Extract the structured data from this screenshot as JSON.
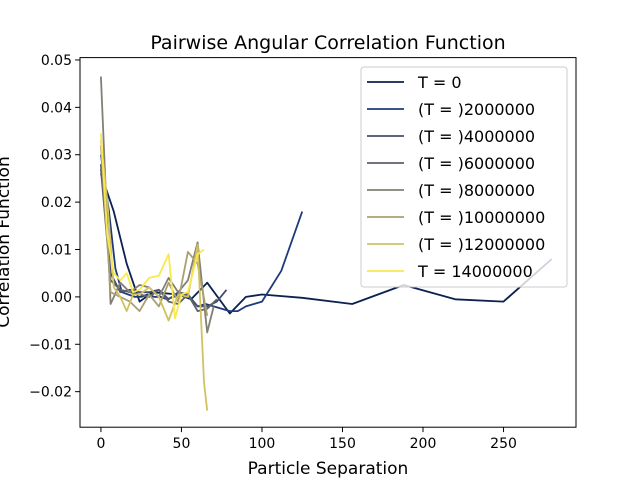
{
  "chart_data": {
    "type": "line",
    "title": "Pairwise Angular Correlation Function",
    "xlabel": "Particle Separation",
    "ylabel": "Correlation Function",
    "xlim": [
      -13,
      295
    ],
    "ylim": [
      -0.0275,
      0.0505
    ],
    "xticks": [
      0,
      50,
      100,
      150,
      200,
      250
    ],
    "xtick_labels": [
      "0",
      "50",
      "100",
      "150",
      "200",
      "250"
    ],
    "yticks": [
      -0.02,
      -0.01,
      0.0,
      0.01,
      0.02,
      0.03,
      0.04,
      0.05
    ],
    "ytick_labels": [
      "−0.02",
      "−0.01",
      "0.00",
      "0.01",
      "0.02",
      "0.03",
      "0.04",
      "0.05"
    ],
    "grid": false,
    "legend_position": "top-right",
    "series": [
      {
        "name": "T = 0",
        "color": "#0b2150",
        "x": [
          0,
          8,
          16,
          24,
          32,
          48,
          56,
          66,
          80,
          90,
          100,
          125,
          156,
          188,
          220,
          250,
          280
        ],
        "y": [
          0.026,
          0.018,
          0.007,
          -0.001,
          0.001,
          0.0005,
          -0.0005,
          0.003,
          -0.0035,
          0.0,
          0.0005,
          -0.0002,
          -0.0015,
          0.0025,
          -0.0005,
          -0.001,
          0.008
        ]
      },
      {
        "name": "(T = )2000000",
        "color": "#1f3a7a",
        "x": [
          0,
          5,
          9,
          13,
          17,
          21,
          25,
          29,
          33,
          37,
          41,
          45,
          50,
          55,
          60,
          65,
          70,
          75,
          80,
          85,
          90,
          95,
          100,
          112,
          125
        ],
        "y": [
          0.03,
          0.018,
          0.006,
          0.001,
          0.0005,
          0.0,
          0.0,
          0.0005,
          0.0,
          0.0,
          -0.0005,
          0.0,
          0.0005,
          0.0,
          -0.002,
          -0.0015,
          -0.002,
          -0.0025,
          -0.003,
          -0.003,
          -0.002,
          -0.0015,
          -0.001,
          0.0055,
          0.018
        ]
      },
      {
        "name": "(T = )4000000",
        "color": "#424f6b",
        "x": [
          0,
          6,
          12,
          18,
          24,
          30,
          36,
          42,
          48,
          54,
          60,
          66,
          72,
          78
        ],
        "y": [
          0.028,
          0.005,
          0.001,
          0.0015,
          0.001,
          0.001,
          0.0015,
          -0.0005,
          0.001,
          0.0005,
          -0.002,
          -0.002,
          -0.001,
          0.0015
        ]
      },
      {
        "name": "(T = )6000000",
        "color": "#5e6068",
        "x": [
          0,
          6,
          12,
          18,
          24,
          30,
          36,
          42,
          48,
          54,
          60,
          66,
          72
        ],
        "y": [
          0.027,
          0.0035,
          0.0015,
          0.001,
          0.0005,
          0.0,
          0.0015,
          -0.001,
          -0.0015,
          0.0005,
          -0.003,
          -0.0025,
          -0.0005
        ]
      },
      {
        "name": "(T = )8000000",
        "color": "#827f75",
        "x": [
          0,
          6,
          12,
          18,
          24,
          30,
          36,
          42,
          48,
          54,
          60,
          66,
          70
        ],
        "y": [
          0.0465,
          -0.0015,
          0.003,
          0.001,
          0.0025,
          0.002,
          0.0,
          0.004,
          0.001,
          0.0035,
          0.0115,
          -0.0075,
          -0.002
        ]
      },
      {
        "name": "(T = )10000000",
        "color": "#a9a072",
        "x": [
          0,
          6,
          12,
          18,
          24,
          30,
          36,
          42,
          48,
          54,
          60,
          66
        ],
        "y": [
          0.032,
          0.001,
          0.0,
          -0.001,
          -0.003,
          0.0005,
          -0.002,
          0.003,
          -0.001,
          0.0095,
          0.007,
          -0.004
        ]
      },
      {
        "name": "(T = )12000000",
        "color": "#d1c25f",
        "x": [
          0,
          4,
          8,
          12,
          16,
          20,
          24,
          30,
          36,
          42,
          48,
          54,
          60,
          64,
          66
        ],
        "y": [
          0.033,
          0.02,
          0.002,
          0.0,
          -0.003,
          0.0005,
          0.0005,
          0.002,
          0.0,
          -0.005,
          0.0005,
          0.0,
          0.011,
          -0.018,
          -0.024
        ]
      },
      {
        "name": "T = 14000000",
        "color": "#fbe84a",
        "x": [
          0,
          4,
          8,
          12,
          16,
          20,
          24,
          30,
          36,
          42,
          46,
          50,
          54,
          60,
          64
        ],
        "y": [
          0.0345,
          0.013,
          0.005,
          0.0035,
          0.005,
          0.001,
          0.0015,
          0.004,
          0.0045,
          0.009,
          -0.0045,
          0.0005,
          0.001,
          0.009,
          0.01
        ]
      }
    ]
  }
}
